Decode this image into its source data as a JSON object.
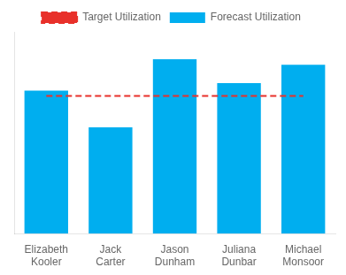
{
  "chart_data": {
    "type": "bar",
    "categories": [
      "Elizabeth\nKooler",
      "Jack\nCarter",
      "Jason\nDunham",
      "Juliana\nDunbar",
      "Michael\nMonsoor"
    ],
    "series": [
      {
        "name": "Forecast Utilization",
        "type": "bar",
        "color": "#00AEEF",
        "values": [
          78,
          58,
          95,
          82,
          92
        ]
      },
      {
        "name": "Target Utilization",
        "type": "line",
        "color": "#E8302A",
        "line_style": "dashed",
        "marker": "none",
        "values": [
          75,
          75,
          75,
          75,
          75
        ]
      }
    ],
    "ylim": [
      0,
      110
    ],
    "grid": false,
    "legend": "top",
    "tick_labels": "x"
  }
}
